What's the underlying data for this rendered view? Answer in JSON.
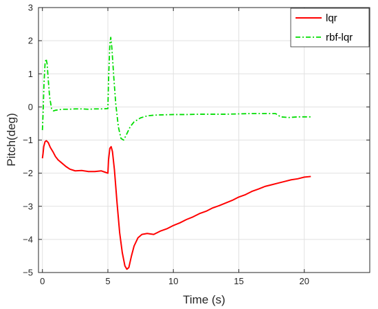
{
  "chart_data": {
    "type": "line",
    "xlabel": "Time (s)",
    "ylabel": "Pitch(deg)",
    "xlim": [
      -0.3,
      25
    ],
    "ylim": [
      -5,
      3
    ],
    "xticks": [
      0,
      5,
      10,
      15,
      20
    ],
    "yticks": [
      -5,
      -4,
      -3,
      -2,
      -1,
      0,
      1,
      2,
      3
    ],
    "grid": true,
    "legend_position": "top-right",
    "series": [
      {
        "name": "lqr",
        "color": "#ff0000",
        "style": "solid",
        "points": [
          [
            0.0,
            -1.55
          ],
          [
            0.05,
            -1.4
          ],
          [
            0.1,
            -1.2
          ],
          [
            0.2,
            -1.05
          ],
          [
            0.3,
            -1.02
          ],
          [
            0.45,
            -1.08
          ],
          [
            0.6,
            -1.22
          ],
          [
            0.8,
            -1.35
          ],
          [
            1.0,
            -1.5
          ],
          [
            1.2,
            -1.6
          ],
          [
            1.5,
            -1.7
          ],
          [
            1.8,
            -1.8
          ],
          [
            2.1,
            -1.88
          ],
          [
            2.5,
            -1.93
          ],
          [
            3.0,
            -1.92
          ],
          [
            3.5,
            -1.95
          ],
          [
            4.0,
            -1.95
          ],
          [
            4.5,
            -1.93
          ],
          [
            5.0,
            -2.0
          ],
          [
            5.05,
            -1.6
          ],
          [
            5.15,
            -1.25
          ],
          [
            5.25,
            -1.2
          ],
          [
            5.35,
            -1.35
          ],
          [
            5.5,
            -1.9
          ],
          [
            5.7,
            -2.9
          ],
          [
            5.9,
            -3.8
          ],
          [
            6.1,
            -4.4
          ],
          [
            6.3,
            -4.8
          ],
          [
            6.45,
            -4.9
          ],
          [
            6.6,
            -4.85
          ],
          [
            6.8,
            -4.5
          ],
          [
            7.0,
            -4.2
          ],
          [
            7.3,
            -3.95
          ],
          [
            7.6,
            -3.85
          ],
          [
            8.0,
            -3.82
          ],
          [
            8.5,
            -3.85
          ],
          [
            9.0,
            -3.75
          ],
          [
            9.5,
            -3.68
          ],
          [
            10.0,
            -3.58
          ],
          [
            10.5,
            -3.5
          ],
          [
            11.0,
            -3.4
          ],
          [
            11.5,
            -3.32
          ],
          [
            12.0,
            -3.22
          ],
          [
            12.5,
            -3.15
          ],
          [
            13.0,
            -3.05
          ],
          [
            13.5,
            -2.98
          ],
          [
            14.0,
            -2.9
          ],
          [
            14.5,
            -2.82
          ],
          [
            15.0,
            -2.72
          ],
          [
            15.5,
            -2.65
          ],
          [
            16.0,
            -2.55
          ],
          [
            16.5,
            -2.48
          ],
          [
            17.0,
            -2.4
          ],
          [
            17.5,
            -2.35
          ],
          [
            18.0,
            -2.3
          ],
          [
            18.5,
            -2.25
          ],
          [
            19.0,
            -2.2
          ],
          [
            19.5,
            -2.17
          ],
          [
            20.0,
            -2.12
          ],
          [
            20.5,
            -2.1
          ]
        ]
      },
      {
        "name": "rbf-lqr",
        "color": "#00dd00",
        "style": "dash-dot",
        "points": [
          [
            0.0,
            -0.7
          ],
          [
            0.05,
            -0.2
          ],
          [
            0.12,
            0.7
          ],
          [
            0.2,
            1.3
          ],
          [
            0.28,
            1.45
          ],
          [
            0.36,
            1.3
          ],
          [
            0.45,
            0.8
          ],
          [
            0.55,
            0.3
          ],
          [
            0.7,
            -0.05
          ],
          [
            0.85,
            -0.12
          ],
          [
            1.0,
            -0.1
          ],
          [
            1.5,
            -0.07
          ],
          [
            2.0,
            -0.07
          ],
          [
            2.5,
            -0.06
          ],
          [
            3.0,
            -0.06
          ],
          [
            3.5,
            -0.07
          ],
          [
            4.0,
            -0.06
          ],
          [
            4.5,
            -0.06
          ],
          [
            5.0,
            -0.05
          ],
          [
            5.05,
            0.8
          ],
          [
            5.15,
            1.9
          ],
          [
            5.22,
            2.1
          ],
          [
            5.3,
            1.8
          ],
          [
            5.45,
            0.9
          ],
          [
            5.6,
            0.1
          ],
          [
            5.8,
            -0.6
          ],
          [
            6.0,
            -0.95
          ],
          [
            6.2,
            -1.0
          ],
          [
            6.4,
            -0.85
          ],
          [
            6.7,
            -0.6
          ],
          [
            7.0,
            -0.45
          ],
          [
            7.5,
            -0.33
          ],
          [
            8.0,
            -0.27
          ],
          [
            8.5,
            -0.25
          ],
          [
            9.0,
            -0.24
          ],
          [
            10.0,
            -0.23
          ],
          [
            11.0,
            -0.23
          ],
          [
            12.0,
            -0.22
          ],
          [
            13.0,
            -0.22
          ],
          [
            14.0,
            -0.22
          ],
          [
            15.0,
            -0.21
          ],
          [
            16.0,
            -0.2
          ],
          [
            17.0,
            -0.2
          ],
          [
            17.8,
            -0.2
          ],
          [
            18.2,
            -0.3
          ],
          [
            18.8,
            -0.32
          ],
          [
            19.5,
            -0.3
          ],
          [
            20.0,
            -0.3
          ],
          [
            20.6,
            -0.3
          ]
        ]
      }
    ]
  }
}
